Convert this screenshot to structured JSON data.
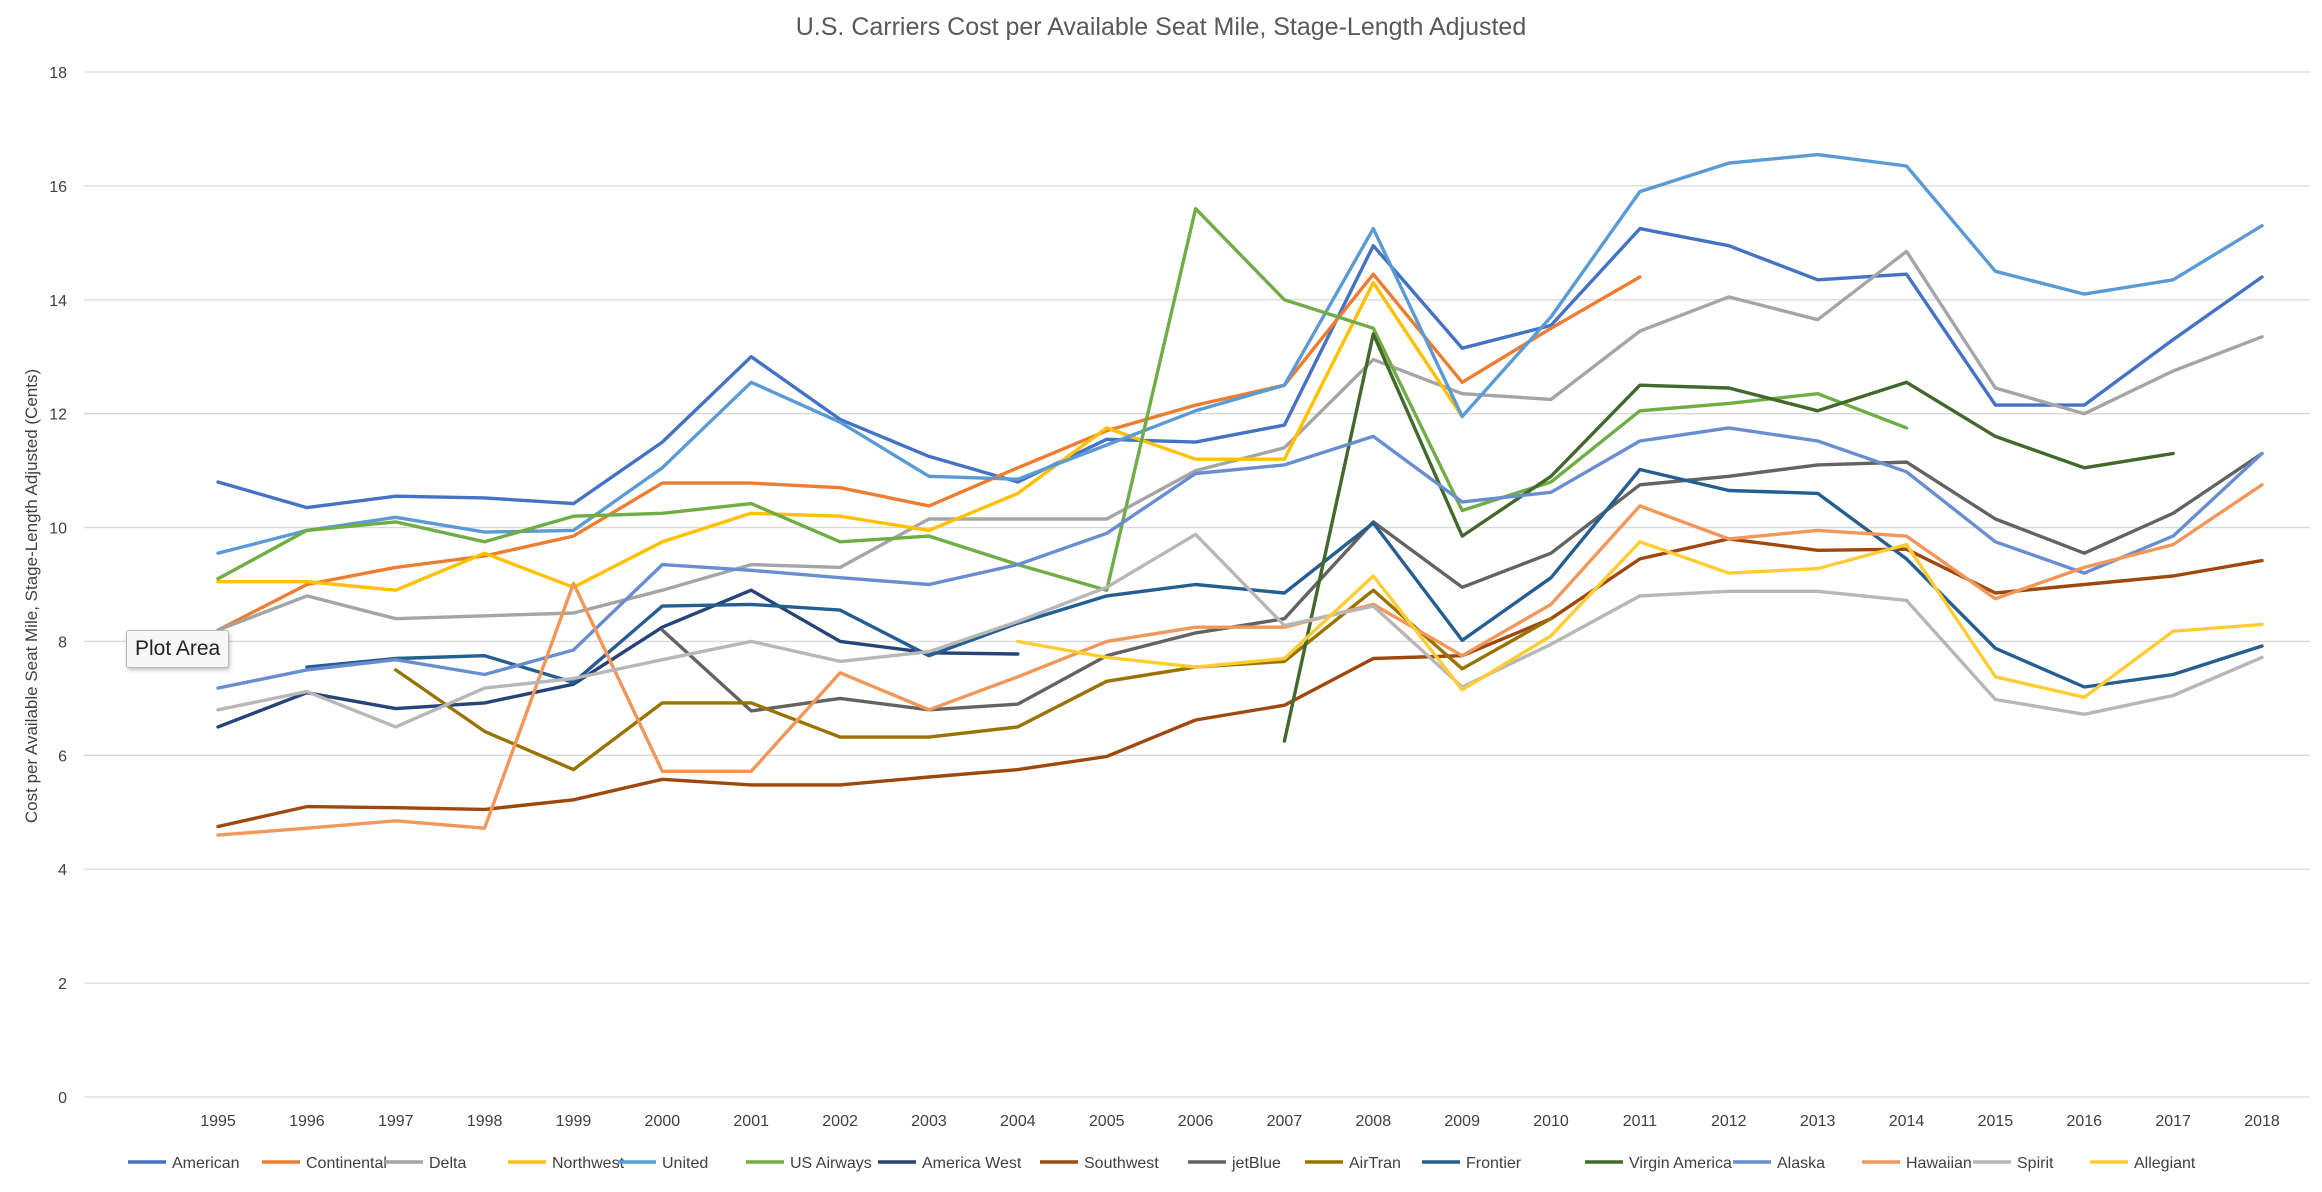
{
  "chart_data": {
    "type": "line",
    "title": "U.S. Carriers Cost per Available Seat Mile, Stage-Length Adjusted",
    "xlabel": "",
    "ylabel": "Cost per Available Seat Mile, Stage-Length Adjusted (Cents)",
    "ylim": [
      0,
      18
    ],
    "yticks": [
      0,
      2,
      4,
      6,
      8,
      10,
      12,
      14,
      16,
      18
    ],
    "grid": true,
    "legend_position": "bottom",
    "categories": [
      "1995",
      "1996",
      "1997",
      "1998",
      "1999",
      "2000",
      "2001",
      "2002",
      "2003",
      "2004",
      "2005",
      "2006",
      "2007",
      "2008",
      "2009",
      "2010",
      "2011",
      "2012",
      "2013",
      "2014",
      "2015",
      "2016",
      "2017",
      "2018"
    ],
    "series": [
      {
        "name": "American",
        "color": "#4472C4",
        "values": [
          10.8,
          10.35,
          10.55,
          10.52,
          10.42,
          11.5,
          13.0,
          11.9,
          11.25,
          10.8,
          11.55,
          11.5,
          11.8,
          14.95,
          13.15,
          13.55,
          15.25,
          14.95,
          14.35,
          14.45,
          12.15,
          12.15,
          13.3,
          14.4
        ]
      },
      {
        "name": "Continental",
        "color": "#ED7D31",
        "values": [
          8.2,
          9.0,
          9.3,
          9.5,
          9.85,
          10.78,
          10.78,
          10.7,
          10.38,
          11.05,
          11.7,
          12.15,
          12.5,
          14.45,
          12.55,
          13.5,
          14.4,
          null,
          null,
          null,
          null,
          null,
          null,
          null
        ]
      },
      {
        "name": "Delta",
        "color": "#A5A5A5",
        "values": [
          8.2,
          8.8,
          8.4,
          8.45,
          8.5,
          8.9,
          9.35,
          9.3,
          10.15,
          10.15,
          10.15,
          11.0,
          11.4,
          12.95,
          12.35,
          12.25,
          13.45,
          14.05,
          13.65,
          14.85,
          12.45,
          12.0,
          12.75,
          13.35
        ]
      },
      {
        "name": "Northwest",
        "color": "#FFC000",
        "values": [
          9.05,
          9.05,
          8.9,
          9.55,
          8.95,
          9.75,
          10.25,
          10.2,
          9.95,
          10.6,
          11.75,
          11.2,
          11.2,
          14.3,
          11.95,
          null,
          null,
          null,
          null,
          null,
          null,
          null,
          null,
          null
        ]
      },
      {
        "name": "United",
        "color": "#5B9BD5",
        "values": [
          9.55,
          9.95,
          10.18,
          9.92,
          9.95,
          11.05,
          12.55,
          11.85,
          10.9,
          10.85,
          11.45,
          12.05,
          12.5,
          15.25,
          11.95,
          13.7,
          15.9,
          16.4,
          16.55,
          16.35,
          14.5,
          14.1,
          14.35,
          15.3
        ]
      },
      {
        "name": "US Airways",
        "color": "#70AD47",
        "values": [
          9.1,
          9.95,
          10.1,
          9.75,
          10.2,
          10.25,
          10.42,
          9.75,
          9.85,
          9.35,
          8.9,
          15.6,
          14.0,
          13.5,
          10.3,
          10.8,
          12.05,
          12.18,
          12.35,
          11.75,
          null,
          null,
          null,
          null
        ]
      },
      {
        "name": "America West",
        "color": "#264478",
        "values": [
          6.5,
          7.1,
          6.82,
          6.92,
          7.25,
          8.25,
          8.9,
          8.0,
          7.8,
          7.78,
          null,
          null,
          null,
          null,
          null,
          null,
          null,
          null,
          null,
          null,
          null,
          null,
          null,
          null
        ]
      },
      {
        "name": "Southwest",
        "color": "#9E480E",
        "values": [
          4.75,
          5.1,
          5.08,
          5.05,
          5.22,
          5.58,
          5.48,
          5.48,
          5.62,
          5.75,
          5.98,
          6.62,
          6.88,
          7.7,
          7.75,
          8.4,
          9.45,
          9.8,
          9.6,
          9.62,
          8.85,
          9.0,
          9.15,
          9.42
        ]
      },
      {
        "name": "jetBlue",
        "color": "#636363",
        "values": [
          null,
          null,
          null,
          null,
          null,
          8.2,
          6.78,
          7.0,
          6.8,
          6.9,
          7.75,
          8.15,
          8.4,
          10.1,
          8.95,
          9.55,
          10.75,
          10.9,
          11.1,
          11.15,
          10.15,
          9.55,
          10.25,
          11.3
        ]
      },
      {
        "name": "AirTran",
        "color": "#997300",
        "values": [
          null,
          null,
          7.5,
          6.42,
          5.75,
          6.92,
          6.92,
          6.32,
          6.32,
          6.5,
          7.3,
          7.55,
          7.65,
          8.9,
          7.52,
          8.4,
          null,
          null,
          null,
          null,
          null,
          null,
          null,
          null
        ]
      },
      {
        "name": "Frontier",
        "color": "#255E91",
        "values": [
          null,
          7.55,
          7.7,
          7.75,
          7.28,
          8.62,
          8.65,
          8.55,
          7.75,
          8.32,
          8.8,
          9.0,
          8.85,
          10.08,
          8.02,
          9.12,
          11.02,
          10.65,
          10.6,
          9.45,
          7.88,
          7.2,
          7.42,
          7.92
        ]
      },
      {
        "name": "Virgin America",
        "color": "#43682B",
        "values": [
          null,
          null,
          null,
          null,
          null,
          null,
          null,
          null,
          null,
          null,
          null,
          null,
          6.25,
          13.4,
          9.85,
          10.9,
          12.5,
          12.45,
          12.05,
          12.55,
          11.6,
          11.05,
          11.3,
          null
        ]
      },
      {
        "name": "Alaska",
        "color": "#698ED0",
        "values": [
          7.18,
          7.5,
          7.68,
          7.42,
          7.85,
          9.35,
          9.25,
          9.12,
          9.0,
          9.35,
          9.9,
          10.95,
          11.1,
          11.6,
          10.45,
          10.62,
          11.52,
          11.75,
          11.52,
          10.98,
          9.75,
          9.2,
          9.85,
          11.3
        ]
      },
      {
        "name": "Hawaiian",
        "color": "#F1975A",
        "values": [
          4.6,
          4.72,
          4.85,
          4.72,
          9.02,
          5.72,
          5.72,
          7.45,
          6.8,
          7.38,
          8.0,
          8.25,
          8.25,
          8.65,
          7.75,
          8.65,
          10.38,
          9.8,
          9.95,
          9.85,
          8.75,
          9.3,
          9.7,
          10.75
        ]
      },
      {
        "name": "Spirit",
        "color": "#B7B7B7",
        "values": [
          6.8,
          7.12,
          6.5,
          7.18,
          7.35,
          7.68,
          8.0,
          7.65,
          7.82,
          8.35,
          8.95,
          9.88,
          8.28,
          8.62,
          7.2,
          7.95,
          8.8,
          8.88,
          8.88,
          8.72,
          6.98,
          6.72,
          7.05,
          7.72
        ]
      },
      {
        "name": "Allegiant",
        "color": "#FFCD33",
        "values": [
          null,
          null,
          null,
          null,
          null,
          null,
          null,
          null,
          null,
          8.0,
          7.72,
          7.55,
          7.7,
          9.15,
          7.15,
          8.1,
          9.75,
          9.2,
          9.28,
          9.7,
          7.38,
          7.02,
          8.18,
          8.3
        ]
      }
    ]
  },
  "tooltip": {
    "text": "Plot Area"
  }
}
